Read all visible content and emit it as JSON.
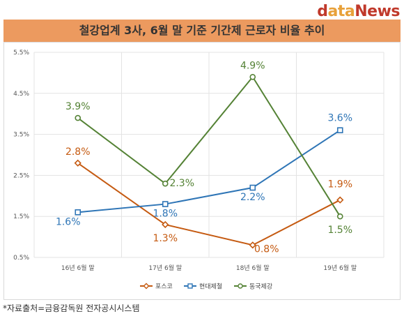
{
  "brand": {
    "d": "d",
    "ata": "ata",
    "news": "News"
  },
  "title": "철강업계 3사, 6월 말 기준 기간제 근로자 비율 추이",
  "source": "*자료출처=금융감독원 전자공시시스템",
  "chart_data": {
    "type": "line",
    "categories": [
      "16년 6월 말",
      "17년 6월 말",
      "18년 6월 말",
      "19년 6월 말"
    ],
    "yticks": [
      "5.5%",
      "4.5%",
      "3.5%",
      "2.5%",
      "1.5%",
      "0.5%"
    ],
    "ylim": [
      0.5,
      5.5
    ],
    "grid": true,
    "legend_position": "bottom",
    "series": [
      {
        "name": "포스코",
        "color": "#c55a11",
        "marker": "diamond",
        "values": [
          2.8,
          1.3,
          0.8,
          1.9
        ],
        "labels": [
          "2.8%",
          "1.3%",
          "0.8%",
          "1.9%"
        ]
      },
      {
        "name": "현대제철",
        "color": "#2e75b6",
        "marker": "square",
        "values": [
          1.6,
          1.8,
          2.2,
          3.6
        ],
        "labels": [
          "1.6%",
          "1.8%",
          "2.2%",
          "3.6%"
        ]
      },
      {
        "name": "동국제강",
        "color": "#548235",
        "marker": "circle",
        "values": [
          3.9,
          2.3,
          4.9,
          1.5
        ],
        "labels": [
          "3.9%",
          "2.3%",
          "4.9%",
          "1.5%"
        ]
      }
    ]
  }
}
